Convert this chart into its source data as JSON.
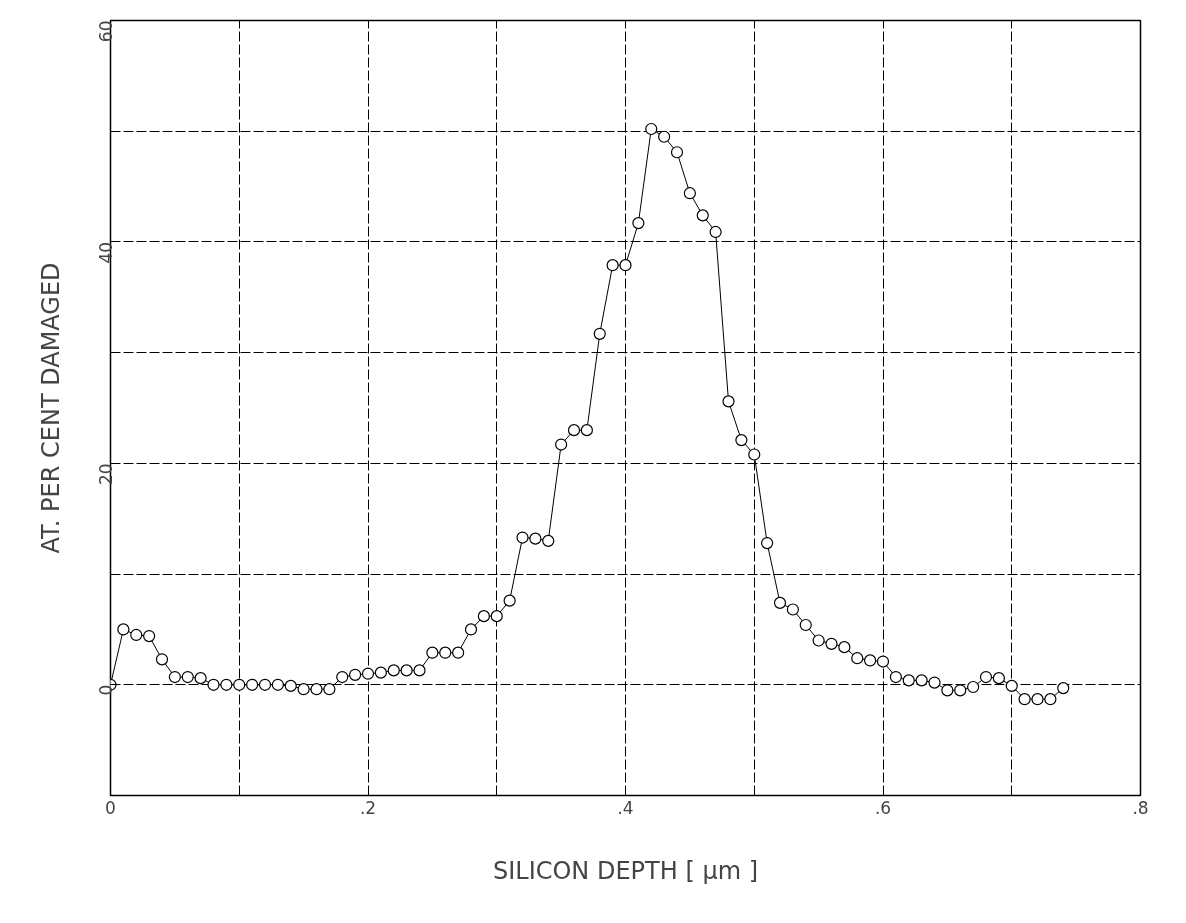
{
  "chart_data": {
    "type": "line",
    "xlabel": "SILICON DEPTH [ μm ]",
    "ylabel": "AT. PER CENT DAMAGED",
    "x": [
      0,
      0.01,
      0.02,
      0.03,
      0.04,
      0.05,
      0.06,
      0.07,
      0.08,
      0.09,
      0.1,
      0.11,
      0.12,
      0.13,
      0.14,
      0.15,
      0.16,
      0.17,
      0.18,
      0.19,
      0.2,
      0.21,
      0.22,
      0.23,
      0.24,
      0.25,
      0.26,
      0.27,
      0.28,
      0.29,
      0.3,
      0.31,
      0.32,
      0.33,
      0.34,
      0.35,
      0.36,
      0.37,
      0.38,
      0.39,
      0.4,
      0.41,
      0.42,
      0.43,
      0.44,
      0.45,
      0.46,
      0.47,
      0.48,
      0.49,
      0.5,
      0.51,
      0.52,
      0.53,
      0.54,
      0.55,
      0.56,
      0.57,
      0.58,
      0.59,
      0.6,
      0.61,
      0.62,
      0.63,
      0.64,
      0.65,
      0.66,
      0.67,
      0.68,
      0.69,
      0.7,
      0.71,
      0.72,
      0.73,
      0.74
    ],
    "series": [
      {
        "color": "#000000",
        "values": [
          0,
          5.0,
          4.5,
          4.4,
          2.3,
          0.7,
          0.7,
          0.6,
          0,
          0,
          0,
          0,
          0,
          0,
          -0.1,
          -0.4,
          -0.4,
          -0.4,
          0.7,
          0.9,
          1.0,
          1.1,
          1.3,
          1.3,
          1.3,
          2.9,
          2.9,
          2.9,
          5.0,
          6.2,
          6.2,
          7.6,
          13.3,
          13.2,
          13.0,
          21.7,
          23.0,
          23.0,
          31.7,
          37.9,
          37.9,
          41.7,
          50.2,
          49.5,
          48.1,
          44.4,
          42.4,
          40.9,
          25.6,
          22.1,
          20.8,
          12.8,
          7.4,
          6.8,
          5.4,
          4.0,
          3.7,
          3.4,
          2.4,
          2.2,
          2.1,
          0.7,
          0.4,
          0.4,
          0.2,
          -0.5,
          -0.5,
          -0.2,
          0.7,
          0.6,
          -0.1,
          -1.3,
          -1.3,
          -1.3,
          -0.3
        ]
      }
    ],
    "xlim": [
      0,
      0.8
    ],
    "ylim": [
      -10,
      60
    ],
    "xticks": [
      0,
      {
        "value": 0.1,
        "label": null
      },
      {
        "value": 0.2,
        "label": ".2"
      },
      {
        "value": 0.3,
        "label": null
      },
      {
        "value": 0.4,
        "label": ".4"
      },
      {
        "value": 0.5,
        "label": null
      },
      {
        "value": 0.6,
        "label": ".6"
      },
      {
        "value": 0.7,
        "label": null
      },
      {
        "value": 0.8,
        "label": ".8"
      }
    ],
    "yticks": [
      {
        "value": -10,
        "label": null
      },
      0,
      {
        "value": 10,
        "label": null
      },
      20,
      {
        "value": 30,
        "label": null
      },
      40,
      {
        "value": 50,
        "label": null
      },
      60
    ],
    "grid": true,
    "marker": "circle",
    "line_style": "solid"
  }
}
